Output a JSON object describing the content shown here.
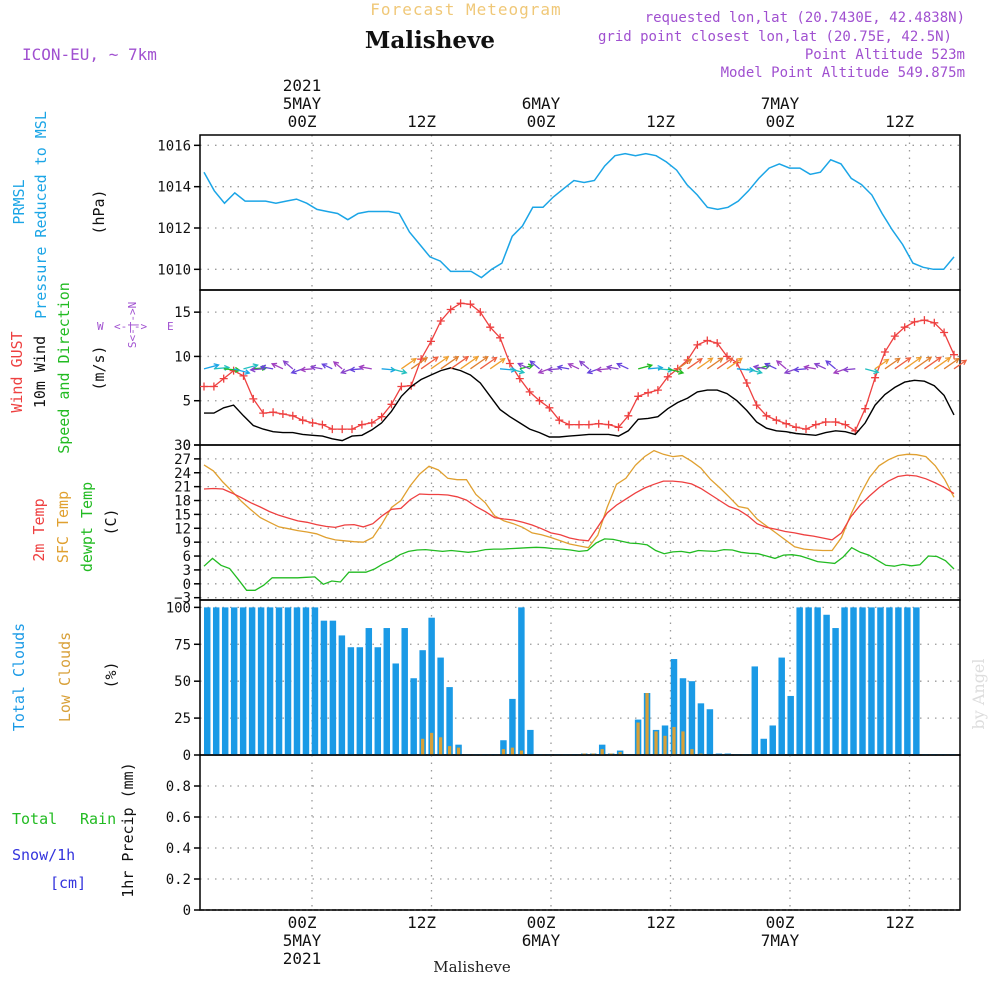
{
  "header": {
    "super_title": "Forecast Meteogram",
    "location": "Malisheve",
    "model": "ICON-EU, ~ 7km",
    "requested": "requested lon,lat (20.7430E, 42.4838N)",
    "grid_point": "grid point closest lon,lat (20.75E, 42.5N)",
    "point_alt": "Point Altitude 523m",
    "model_alt": "Model Point Altitude 549.875m",
    "watermark": "by Angel",
    "footer": "Malisheve"
  },
  "time_axis": {
    "top": [
      {
        "hour": -1,
        "lines": [
          "2021",
          "5MAY",
          "00Z"
        ]
      },
      {
        "hour": 11,
        "lines": [
          "12Z"
        ]
      },
      {
        "hour": 23,
        "lines": [
          "6MAY",
          "00Z"
        ]
      },
      {
        "hour": 35,
        "lines": [
          "12Z"
        ]
      },
      {
        "hour": 47,
        "lines": [
          "7MAY",
          "00Z"
        ]
      },
      {
        "hour": 59,
        "lines": [
          "12Z"
        ]
      }
    ],
    "bottom": [
      {
        "hour": -1,
        "lines": [
          "00Z",
          "5MAY",
          "2021"
        ]
      },
      {
        "hour": 11,
        "lines": [
          "12Z"
        ]
      },
      {
        "hour": 23,
        "lines": [
          "00Z",
          "6MAY"
        ]
      },
      {
        "hour": 35,
        "lines": [
          "12Z"
        ]
      },
      {
        "hour": 47,
        "lines": [
          "00Z",
          "7MAY"
        ]
      },
      {
        "hour": 59,
        "lines": [
          "12Z"
        ]
      }
    ]
  },
  "colors": {
    "pressure": "#1ba5e6",
    "gust": "#ee4040",
    "wind": "#000000",
    "direction": "#22bb22",
    "t2m": "#ee4040",
    "sfc": "#e0a030",
    "dewpt": "#22bb22",
    "total_clouds": "#1a9ae6",
    "low_clouds": "#d8a038",
    "rain": "#22bb22",
    "snow": "#3333dd",
    "header_purple": "#a050d0",
    "super_title": "#f0c878"
  },
  "chart_data": [
    {
      "type": "line",
      "panel": "pressure",
      "ylabel_lines": [
        "PRMSL",
        "Pressure Reduced to MSL",
        "(hPa)"
      ],
      "ylim": [
        1009,
        1016.5
      ],
      "yticks": [
        1010,
        1012,
        1014,
        1016
      ],
      "series": [
        {
          "name": "PRMSL",
          "values": [
            1014.7,
            1013.8,
            1013.2,
            1013.7,
            1013.3,
            1013.3,
            1013.3,
            1013.2,
            1013.3,
            1013.4,
            1013.2,
            1012.9,
            1012.8,
            1012.7,
            1012.4,
            1012.7,
            1012.8,
            1012.8,
            1012.8,
            1012.7,
            1011.8,
            1011.2,
            1010.6,
            1010.4,
            1009.9,
            1009.9,
            1009.9,
            1009.6,
            1010.0,
            1010.3,
            1011.6,
            1012.1,
            1013.0,
            1013.0,
            1013.5,
            1013.9,
            1014.3,
            1014.2,
            1014.3,
            1015.0,
            1015.5,
            1015.6,
            1015.5,
            1015.6,
            1015.5,
            1015.2,
            1014.8,
            1014.1,
            1013.6,
            1013.0,
            1012.9,
            1013.0,
            1013.3,
            1013.8,
            1014.4,
            1014.9,
            1015.1,
            1014.9,
            1014.9,
            1014.6,
            1014.7,
            1015.3,
            1015.1,
            1014.4,
            1014.1,
            1013.6,
            1012.7,
            1011.9,
            1011.2,
            1010.3,
            1010.1,
            1010.0,
            1010.0,
            1010.6
          ]
        }
      ]
    },
    {
      "type": "line",
      "panel": "wind",
      "ylabel_lines": [
        "Wind GUST",
        "10m Wind",
        "Speed and Direction",
        "(m/s)"
      ],
      "compass": {
        "n": "N",
        "s": "S",
        "w": "W",
        "e": "E",
        "arrow": "<-|->"
      },
      "ylim": [
        0,
        17.5
      ],
      "yticks": [
        0,
        5,
        10,
        15
      ],
      "series": [
        {
          "name": "Wind GUST",
          "values": [
            6.6,
            6.6,
            7.5,
            8.4,
            7.8,
            5.2,
            3.6,
            3.7,
            3.5,
            3.3,
            2.8,
            2.5,
            2.3,
            1.8,
            1.8,
            1.8,
            2.3,
            2.5,
            3.2,
            4.6,
            6.6,
            6.7,
            9.7,
            11.7,
            14.0,
            15.3,
            16.0,
            15.9,
            15.0,
            13.3,
            12.1,
            9.2,
            7.5,
            6.0,
            5.0,
            4.2,
            2.8,
            2.3,
            2.3,
            2.3,
            2.4,
            2.3,
            2.0,
            3.3,
            5.5,
            5.9,
            6.2,
            7.7,
            8.6,
            9.6,
            11.3,
            11.8,
            11.5,
            10.0,
            9.3,
            7.0,
            4.5,
            3.3,
            2.8,
            2.4,
            2.0,
            1.8,
            2.3,
            2.6,
            2.6,
            2.3,
            1.6,
            4.1,
            7.6,
            10.5,
            12.3,
            13.3,
            13.9,
            14.1,
            13.8,
            12.7,
            10.2
          ]
        },
        {
          "name": "10m Wind",
          "values": [
            3.6,
            3.6,
            4.2,
            4.5,
            3.3,
            2.2,
            1.8,
            1.5,
            1.4,
            1.4,
            1.2,
            1.1,
            1.0,
            0.7,
            0.5,
            1.0,
            1.1,
            1.7,
            2.5,
            3.8,
            5.5,
            6.6,
            7.4,
            7.9,
            8.4,
            8.7,
            8.4,
            7.9,
            7.0,
            5.5,
            4.0,
            3.2,
            2.5,
            1.8,
            1.4,
            0.9,
            0.9,
            1.0,
            1.1,
            1.2,
            1.2,
            1.2,
            1.0,
            1.6,
            2.9,
            3.0,
            3.2,
            4.1,
            4.8,
            5.3,
            6.0,
            6.2,
            6.2,
            5.8,
            5.0,
            3.9,
            2.6,
            1.9,
            1.6,
            1.5,
            1.3,
            1.2,
            1.1,
            1.4,
            1.6,
            1.5,
            1.2,
            2.5,
            4.5,
            5.7,
            6.5,
            7.1,
            7.3,
            7.2,
            6.7,
            5.6,
            3.4
          ]
        }
      ]
    },
    {
      "type": "line",
      "panel": "temperature",
      "ylabel_lines": [
        "2m Temp",
        "SFC Temp",
        "dewpt Temp",
        "(C)"
      ],
      "ylim": [
        -3.5,
        30
      ],
      "yticks": [
        -3,
        0,
        3,
        6,
        9,
        12,
        15,
        18,
        21,
        24,
        27,
        30
      ],
      "series": [
        {
          "name": "2m Temp",
          "values": [
            20.5,
            20.6,
            20.5,
            19.6,
            18.6,
            17.5,
            16.6,
            15.6,
            14.8,
            14.2,
            13.6,
            13.3,
            12.8,
            12.4,
            12.2,
            12.7,
            12.8,
            12.3,
            13.0,
            14.7,
            16.1,
            16.3,
            18.2,
            19.4,
            19.3,
            19.3,
            19.2,
            18.8,
            18.1,
            16.7,
            15.6,
            14.3,
            14.0,
            13.8,
            13.3,
            12.7,
            11.9,
            11.0,
            10.6,
            9.9,
            9.5,
            9.3,
            12.3,
            15.3,
            17.0,
            18.3,
            19.6,
            20.7,
            21.5,
            22.2,
            22.2,
            22.0,
            21.6,
            20.6,
            19.3,
            18.0,
            16.7,
            16.0,
            14.7,
            13.0,
            12.2,
            11.8,
            11.3,
            11.0,
            10.6,
            10.3,
            9.9,
            9.5,
            11.0,
            14.5,
            17.0,
            19.0,
            20.8,
            22.2,
            23.2,
            23.5,
            23.3,
            22.7,
            21.8,
            20.8,
            19.5
          ]
        },
        {
          "name": "SFC Temp",
          "values": [
            25.7,
            24.4,
            22.0,
            20.0,
            17.8,
            16.0,
            14.3,
            13.3,
            12.3,
            11.9,
            11.5,
            11.2,
            10.8,
            10.0,
            9.5,
            9.3,
            9.1,
            9.0,
            10.0,
            13.0,
            16.5,
            18.0,
            21.2,
            23.7,
            25.4,
            24.6,
            22.8,
            22.5,
            22.5,
            19.3,
            17.5,
            14.7,
            13.6,
            13.0,
            12.2,
            11.0,
            10.6,
            10.0,
            9.3,
            8.6,
            8.2,
            7.8,
            10.5,
            16.5,
            21.5,
            22.8,
            25.6,
            27.5,
            28.8,
            28.0,
            27.5,
            27.7,
            26.5,
            25.0,
            22.6,
            20.8,
            18.8,
            16.7,
            16.3,
            14.0,
            12.5,
            11.0,
            9.5,
            8.0,
            7.5,
            7.3,
            7.2,
            7.2,
            10.0,
            15.0,
            19.3,
            23.0,
            25.5,
            26.8,
            27.7,
            28.0,
            27.9,
            27.5,
            25.5,
            22.6,
            18.7
          ]
        },
        {
          "name": "dewpt Temp",
          "values": [
            3.8,
            5.5,
            4.0,
            3.3,
            1.0,
            -1.4,
            -1.4,
            -0.3,
            1.3,
            1.3,
            1.3,
            1.3,
            1.4,
            1.5,
            -0.1,
            0.6,
            0.4,
            2.5,
            2.5,
            2.5,
            3.2,
            4.3,
            5.1,
            6.3,
            7.0,
            7.3,
            7.4,
            7.2,
            7.0,
            7.2,
            7.0,
            6.8,
            7.0,
            7.4,
            7.5,
            7.5,
            7.6,
            7.7,
            7.8,
            7.9,
            7.8,
            7.6,
            7.5,
            7.3,
            7.0,
            7.2,
            8.8,
            9.7,
            9.6,
            9.2,
            8.8,
            8.7,
            8.4,
            7.2,
            6.5,
            6.9,
            7.0,
            6.7,
            7.2,
            7.1,
            7.0,
            7.4,
            7.3,
            6.8,
            6.6,
            6.5,
            6.0,
            5.5,
            6.2,
            6.3,
            6.0,
            5.4,
            4.8,
            4.6,
            4.4,
            5.8,
            7.8,
            6.8,
            6.2,
            5.1,
            4.0,
            3.8,
            4.2,
            3.9,
            4.1,
            6.0,
            5.9,
            5.0,
            3.2
          ]
        }
      ]
    },
    {
      "type": "bar",
      "panel": "clouds",
      "ylabel_lines": [
        "Total Clouds",
        "Low Clouds",
        "(%)"
      ],
      "ylim": [
        0,
        105
      ],
      "yticks": [
        0,
        25,
        50,
        75,
        100
      ],
      "series": [
        {
          "name": "Total Clouds",
          "values": [
            100,
            100,
            100,
            100,
            100,
            100,
            100,
            100,
            100,
            100,
            100,
            100,
            100,
            91,
            91,
            81,
            73,
            73,
            86,
            73,
            86,
            62,
            86,
            52,
            71,
            93,
            66,
            46,
            7,
            0,
            0,
            0,
            0,
            10,
            38,
            100,
            17,
            0,
            0,
            0,
            0,
            0,
            1,
            1,
            7,
            1,
            3,
            0,
            24,
            42,
            17,
            20,
            65,
            52,
            50,
            35,
            31,
            1,
            1,
            0,
            0,
            60,
            11,
            20,
            66,
            40,
            100,
            100,
            100,
            95,
            86,
            100,
            100,
            100,
            100,
            100,
            100,
            100,
            100,
            100,
            0,
            0,
            0,
            0
          ]
        },
        {
          "name": "Low Clouds",
          "values": [
            0,
            0,
            0,
            0,
            0,
            0,
            0,
            0,
            0,
            0,
            0,
            0,
            0,
            0,
            0,
            0,
            0,
            0,
            0,
            0,
            0,
            0,
            0,
            0,
            11,
            15,
            12,
            6,
            5,
            0,
            0,
            0,
            0,
            4,
            5,
            3,
            0,
            0,
            0,
            0,
            0,
            0,
            1,
            1,
            4,
            1,
            2,
            0,
            22,
            42,
            16,
            13,
            19,
            16,
            4,
            1,
            0,
            0,
            0,
            0,
            0,
            0,
            0,
            0,
            0,
            0,
            0,
            0,
            0,
            0,
            0,
            0,
            0,
            0,
            0,
            0,
            0,
            0,
            0,
            0,
            0,
            0,
            0,
            0
          ]
        }
      ]
    },
    {
      "type": "line",
      "panel": "precip",
      "ylabel_lines": [
        "1hr Precip (mm)"
      ],
      "left_labels": {
        "total": "Total",
        "rain": "Rain",
        "snow": "Snow/1h",
        "snow_unit": "[cm]"
      },
      "ylim": [
        0,
        1
      ],
      "yticks": [
        0,
        0.2,
        0.4,
        0.6,
        0.8
      ],
      "series": [
        {
          "name": "Rain",
          "values": []
        }
      ]
    }
  ]
}
